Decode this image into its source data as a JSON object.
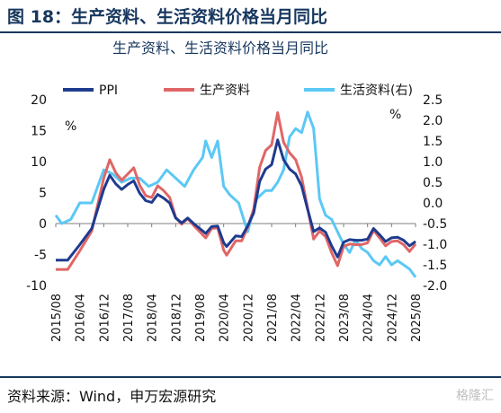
{
  "figure": {
    "title": "图 18：生产资料、生活资料价格当月同比",
    "source": "资料来源：Wind，申万宏源研究",
    "watermark": "格隆汇"
  },
  "colors": {
    "ppi": "#1f3b8f",
    "producer": "#e06666",
    "consumer": "#5bc8f5",
    "accent": "#17375e"
  },
  "chart_data": {
    "type": "line",
    "title": "生产资料、生活资料价格当月同比",
    "left_unit": "%",
    "right_unit": "%",
    "ylim_left": [
      -10,
      20
    ],
    "yticks_left": [
      -10,
      -5,
      0,
      5,
      10,
      15,
      20
    ],
    "ylim_right": [
      -2.0,
      2.5
    ],
    "yticks_right": [
      "-2.0",
      "-1.5",
      "-1.0",
      "-0.5",
      "0.0",
      "0.5",
      "1.0",
      "1.5",
      "2.0",
      "2.5"
    ],
    "x_ticks": [
      "2015/08",
      "2016/04",
      "2016/12",
      "2017/08",
      "2018/04",
      "2018/12",
      "2019/08",
      "2020/04",
      "2020/12",
      "2021/08",
      "2022/04",
      "2022/12",
      "2023/08",
      "2024/04",
      "2024/12",
      "2025/08"
    ],
    "legend_position": "top",
    "series": [
      {
        "name": "PPI",
        "axis": "left",
        "color": "#1f3b8f",
        "points": [
          [
            "2015/08",
            -5.9
          ],
          [
            "2015/12",
            -5.9
          ],
          [
            "2016/04",
            -3.4
          ],
          [
            "2016/08",
            -0.8
          ],
          [
            "2016/12",
            5.5
          ],
          [
            "2017/02",
            7.8
          ],
          [
            "2017/04",
            6.4
          ],
          [
            "2017/06",
            5.5
          ],
          [
            "2017/08",
            6.3
          ],
          [
            "2017/10",
            6.9
          ],
          [
            "2017/12",
            4.9
          ],
          [
            "2018/02",
            3.7
          ],
          [
            "2018/04",
            3.4
          ],
          [
            "2018/06",
            4.7
          ],
          [
            "2018/08",
            4.1
          ],
          [
            "2018/10",
            3.3
          ],
          [
            "2018/12",
            0.9
          ],
          [
            "2019/02",
            0.1
          ],
          [
            "2019/04",
            0.9
          ],
          [
            "2019/06",
            0.0
          ],
          [
            "2019/08",
            -0.8
          ],
          [
            "2019/10",
            -1.6
          ],
          [
            "2019/12",
            -0.5
          ],
          [
            "2020/02",
            -0.4
          ],
          [
            "2020/04",
            -3.1
          ],
          [
            "2020/05",
            -3.7
          ],
          [
            "2020/08",
            -2.0
          ],
          [
            "2020/10",
            -2.1
          ],
          [
            "2020/12",
            -0.4
          ],
          [
            "2021/02",
            1.7
          ],
          [
            "2021/04",
            6.8
          ],
          [
            "2021/06",
            8.8
          ],
          [
            "2021/08",
            9.5
          ],
          [
            "2021/10",
            13.5
          ],
          [
            "2021/12",
            10.3
          ],
          [
            "2022/02",
            8.8
          ],
          [
            "2022/04",
            8.0
          ],
          [
            "2022/06",
            6.1
          ],
          [
            "2022/08",
            2.3
          ],
          [
            "2022/10",
            -1.3
          ],
          [
            "2022/12",
            -0.7
          ],
          [
            "2023/02",
            -1.4
          ],
          [
            "2023/04",
            -3.6
          ],
          [
            "2023/06",
            -5.4
          ],
          [
            "2023/08",
            -3.0
          ],
          [
            "2023/10",
            -2.6
          ],
          [
            "2023/12",
            -2.7
          ],
          [
            "2024/02",
            -2.7
          ],
          [
            "2024/04",
            -2.5
          ],
          [
            "2024/06",
            -0.8
          ],
          [
            "2024/08",
            -1.8
          ],
          [
            "2024/10",
            -2.9
          ],
          [
            "2024/12",
            -2.3
          ],
          [
            "2025/02",
            -2.2
          ],
          [
            "2025/04",
            -2.7
          ],
          [
            "2025/06",
            -3.6
          ],
          [
            "2025/08",
            -2.9
          ]
        ]
      },
      {
        "name": "生产资料",
        "axis": "left",
        "color": "#e06666",
        "points": [
          [
            "2015/08",
            -7.4
          ],
          [
            "2015/12",
            -7.4
          ],
          [
            "2016/04",
            -4.4
          ],
          [
            "2016/08",
            -1.2
          ],
          [
            "2016/12",
            7.3
          ],
          [
            "2017/02",
            10.3
          ],
          [
            "2017/04",
            8.2
          ],
          [
            "2017/06",
            7.0
          ],
          [
            "2017/08",
            8.0
          ],
          [
            "2017/10",
            9.0
          ],
          [
            "2017/12",
            6.2
          ],
          [
            "2018/02",
            4.5
          ],
          [
            "2018/04",
            4.2
          ],
          [
            "2018/06",
            6.1
          ],
          [
            "2018/08",
            5.3
          ],
          [
            "2018/10",
            4.2
          ],
          [
            "2018/12",
            1.0
          ],
          [
            "2019/02",
            -0.1
          ],
          [
            "2019/04",
            0.8
          ],
          [
            "2019/06",
            -0.3
          ],
          [
            "2019/08",
            -1.3
          ],
          [
            "2019/10",
            -2.3
          ],
          [
            "2019/12",
            -0.8
          ],
          [
            "2020/02",
            -0.7
          ],
          [
            "2020/04",
            -4.3
          ],
          [
            "2020/05",
            -5.1
          ],
          [
            "2020/08",
            -2.8
          ],
          [
            "2020/10",
            -2.8
          ],
          [
            "2020/12",
            -0.6
          ],
          [
            "2021/02",
            2.3
          ],
          [
            "2021/04",
            9.1
          ],
          [
            "2021/06",
            11.8
          ],
          [
            "2021/08",
            12.7
          ],
          [
            "2021/10",
            17.9
          ],
          [
            "2021/12",
            13.1
          ],
          [
            "2022/02",
            11.4
          ],
          [
            "2022/04",
            10.3
          ],
          [
            "2022/06",
            7.5
          ],
          [
            "2022/08",
            2.5
          ],
          [
            "2022/10",
            -2.5
          ],
          [
            "2022/12",
            -1.2
          ],
          [
            "2023/02",
            -2.1
          ],
          [
            "2023/04",
            -4.7
          ],
          [
            "2023/06",
            -6.8
          ],
          [
            "2023/08",
            -3.7
          ],
          [
            "2023/10",
            -3.3
          ],
          [
            "2023/12",
            -3.4
          ],
          [
            "2024/02",
            -3.4
          ],
          [
            "2024/04",
            -3.1
          ],
          [
            "2024/06",
            -1.1
          ],
          [
            "2024/08",
            -2.3
          ],
          [
            "2024/10",
            -3.6
          ],
          [
            "2024/12",
            -2.9
          ],
          [
            "2025/02",
            -2.8
          ],
          [
            "2025/04",
            -3.4
          ],
          [
            "2025/06",
            -4.5
          ],
          [
            "2025/08",
            -3.3
          ]
        ]
      },
      {
        "name": "生活资料(右)",
        "axis": "right",
        "color": "#5bc8f5",
        "points": [
          [
            "2015/08",
            -0.3
          ],
          [
            "2015/10",
            -0.5
          ],
          [
            "2016/01",
            -0.4
          ],
          [
            "2016/04",
            0.0
          ],
          [
            "2016/08",
            0.0
          ],
          [
            "2016/12",
            0.8
          ],
          [
            "2017/03",
            0.7
          ],
          [
            "2017/06",
            0.5
          ],
          [
            "2017/09",
            0.6
          ],
          [
            "2017/12",
            0.6
          ],
          [
            "2018/03",
            0.4
          ],
          [
            "2018/06",
            0.5
          ],
          [
            "2018/09",
            0.8
          ],
          [
            "2018/12",
            0.6
          ],
          [
            "2019/03",
            0.4
          ],
          [
            "2019/06",
            0.8
          ],
          [
            "2019/09",
            1.1
          ],
          [
            "2019/10",
            1.5
          ],
          [
            "2019/12",
            1.1
          ],
          [
            "2020/02",
            1.5
          ],
          [
            "2020/04",
            0.4
          ],
          [
            "2020/06",
            0.2
          ],
          [
            "2020/09",
            0.0
          ],
          [
            "2020/12",
            -0.7
          ],
          [
            "2021/03",
            0.1
          ],
          [
            "2021/06",
            0.3
          ],
          [
            "2021/08",
            0.3
          ],
          [
            "2021/10",
            0.5
          ],
          [
            "2021/12",
            0.8
          ],
          [
            "2022/02",
            1.6
          ],
          [
            "2022/04",
            1.8
          ],
          [
            "2022/06",
            1.7
          ],
          [
            "2022/08",
            2.2
          ],
          [
            "2022/10",
            1.8
          ],
          [
            "2022/12",
            0.1
          ],
          [
            "2023/02",
            -0.3
          ],
          [
            "2023/04",
            -0.4
          ],
          [
            "2023/06",
            -0.7
          ],
          [
            "2023/08",
            -1.0
          ],
          [
            "2023/10",
            -1.2
          ],
          [
            "2023/12",
            -0.9
          ],
          [
            "2024/02",
            -1.1
          ],
          [
            "2024/04",
            -1.2
          ],
          [
            "2024/06",
            -1.4
          ],
          [
            "2024/08",
            -1.5
          ],
          [
            "2024/10",
            -1.3
          ],
          [
            "2024/12",
            -1.5
          ],
          [
            "2025/02",
            -1.4
          ],
          [
            "2025/04",
            -1.5
          ],
          [
            "2025/06",
            -1.6
          ],
          [
            "2025/08",
            -1.8
          ]
        ]
      }
    ]
  }
}
